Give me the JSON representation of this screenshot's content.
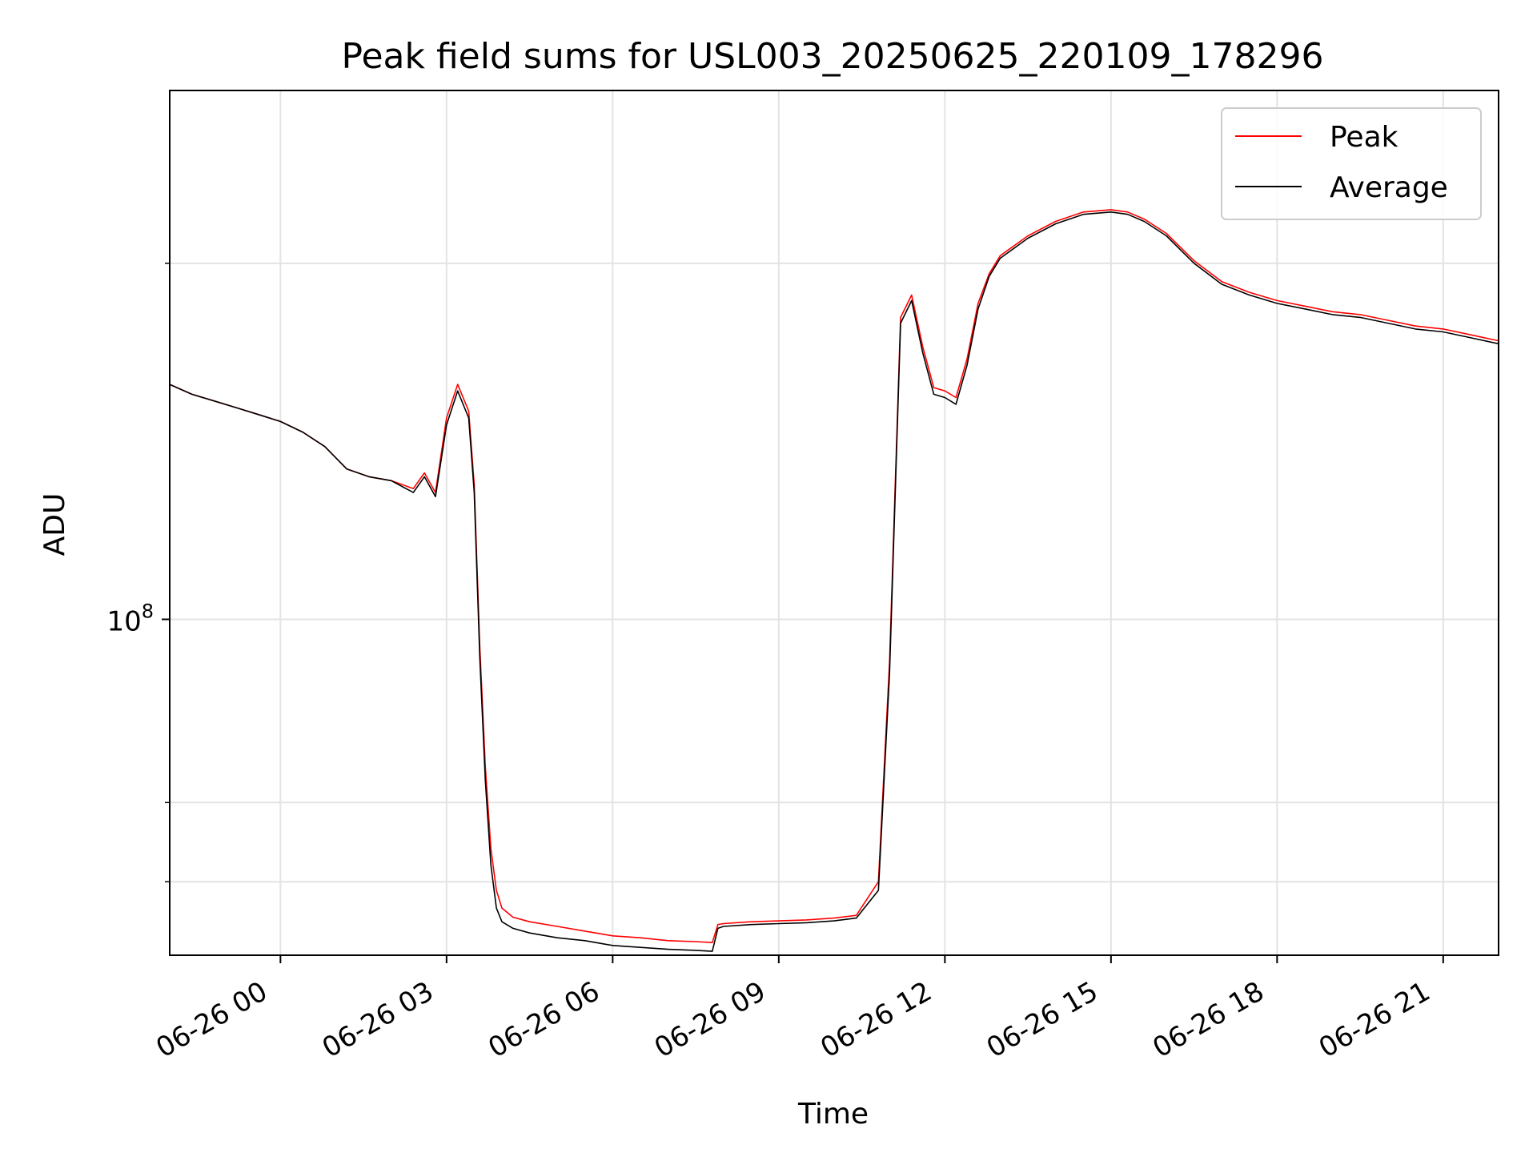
{
  "chart_data": {
    "type": "line",
    "title": "Peak field sums for USL003_20250625_220109_178296",
    "xlabel": "Time",
    "ylabel": "ADU",
    "y_scale": "log",
    "grid": true,
    "legend_position": "top-right",
    "x_tick_labels": [
      "06-26 00",
      "06-26 03",
      "06-26 06",
      "06-26 09",
      "06-26 12",
      "06-26 15",
      "06-26 18",
      "06-26 21"
    ],
    "x_ticks_hours": [
      0,
      3,
      6,
      9,
      12,
      15,
      18,
      21
    ],
    "x_range_hours": [
      -2.0,
      22.0
    ],
    "y_major_ticks": [
      {
        "value": 100000000,
        "base": "10",
        "exponent": "8"
      }
    ],
    "y_minor_ticks": [
      60000000,
      70000000,
      200000000,
      300000000
    ],
    "ylim": [
      52000000,
      280000000
    ],
    "series": [
      {
        "name": "Peak",
        "color": "#ff0000",
        "x_hours": [
          -2.0,
          -1.6,
          -1.2,
          -0.8,
          -0.4,
          0.0,
          0.4,
          0.8,
          1.2,
          1.6,
          2.0,
          2.4,
          2.6,
          2.8,
          3.0,
          3.2,
          3.4,
          3.5,
          3.6,
          3.7,
          3.8,
          3.9,
          4.0,
          4.2,
          4.5,
          5.0,
          5.5,
          5.8,
          6.0,
          6.5,
          7.0,
          7.5,
          7.8,
          7.9,
          8.0,
          8.5,
          9.0,
          9.5,
          10.0,
          10.4,
          10.8,
          11.0,
          11.2,
          11.4,
          11.6,
          11.8,
          12.0,
          12.2,
          12.4,
          12.6,
          12.8,
          13.0,
          13.5,
          14.0,
          14.5,
          15.0,
          15.3,
          15.6,
          16.0,
          16.5,
          17.0,
          17.5,
          18.0,
          18.5,
          19.0,
          19.5,
          20.0,
          20.5,
          21.0,
          21.5,
          22.0
        ],
        "y": [
          158000000,
          155000000,
          153000000,
          151000000,
          149000000,
          147000000,
          144000000,
          140000000,
          134000000,
          132000000,
          131000000,
          129000000,
          133000000,
          128000000,
          148000000,
          158000000,
          150000000,
          130000000,
          95000000,
          75000000,
          64000000,
          59000000,
          57000000,
          56000000,
          55500000,
          55000000,
          54500000,
          54200000,
          54000000,
          53800000,
          53500000,
          53400000,
          53300000,
          55200000,
          55300000,
          55500000,
          55600000,
          55700000,
          55900000,
          56200000,
          60000000,
          92000000,
          180000000,
          188000000,
          170000000,
          157000000,
          156000000,
          154000000,
          166000000,
          185000000,
          196000000,
          203000000,
          211000000,
          217000000,
          221000000,
          222000000,
          221000000,
          218000000,
          212000000,
          201000000,
          193000000,
          189000000,
          186000000,
          184000000,
          182000000,
          181000000,
          179000000,
          177000000,
          176000000,
          174000000,
          172000000
        ]
      },
      {
        "name": "Average",
        "color": "#000000",
        "x_hours": [
          -2.0,
          -1.6,
          -1.2,
          -0.8,
          -0.4,
          0.0,
          0.4,
          0.8,
          1.2,
          1.6,
          2.0,
          2.4,
          2.6,
          2.8,
          3.0,
          3.2,
          3.4,
          3.5,
          3.6,
          3.7,
          3.8,
          3.9,
          4.0,
          4.2,
          4.5,
          5.0,
          5.5,
          5.8,
          6.0,
          6.5,
          7.0,
          7.5,
          7.8,
          7.9,
          8.0,
          8.5,
          9.0,
          9.5,
          10.0,
          10.4,
          10.8,
          11.0,
          11.2,
          11.4,
          11.6,
          11.8,
          12.0,
          12.2,
          12.4,
          12.6,
          12.8,
          13.0,
          13.5,
          14.0,
          14.5,
          15.0,
          15.3,
          15.6,
          16.0,
          16.5,
          17.0,
          17.5,
          18.0,
          18.5,
          19.0,
          19.5,
          20.0,
          20.5,
          21.0,
          21.5,
          22.0
        ],
        "y": [
          158000000,
          155000000,
          153000000,
          151000000,
          149000000,
          147000000,
          144000000,
          140000000,
          134000000,
          132000000,
          131000000,
          128000000,
          132000000,
          127000000,
          146000000,
          156000000,
          148000000,
          128000000,
          93000000,
          73000000,
          62000000,
          57000000,
          55500000,
          54800000,
          54300000,
          53800000,
          53500000,
          53200000,
          53000000,
          52800000,
          52600000,
          52500000,
          52400000,
          54800000,
          55000000,
          55200000,
          55300000,
          55400000,
          55600000,
          55900000,
          59000000,
          90000000,
          178000000,
          186000000,
          168000000,
          155000000,
          154000000,
          152000000,
          164000000,
          183000000,
          195000000,
          202000000,
          210000000,
          216000000,
          220000000,
          221000000,
          220000000,
          217000000,
          211000000,
          200000000,
          192000000,
          188000000,
          185000000,
          183000000,
          181000000,
          180000000,
          178000000,
          176000000,
          175000000,
          173000000,
          171000000
        ]
      }
    ]
  }
}
